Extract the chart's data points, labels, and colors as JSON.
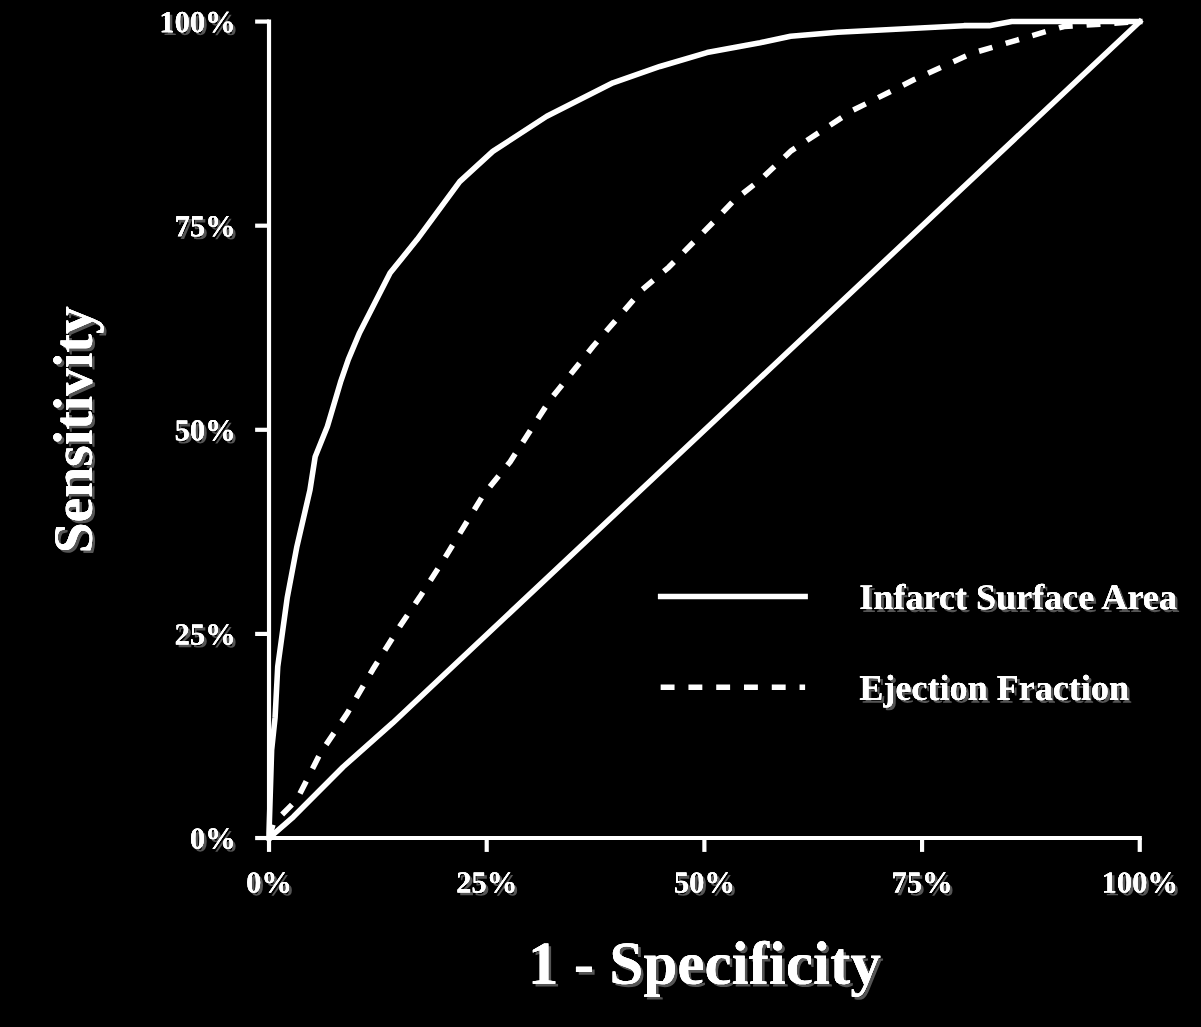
{
  "chart_data": {
    "type": "line",
    "xlabel": "1 - Specificity",
    "ylabel": "Sensitivity",
    "xlim": [
      0,
      100
    ],
    "ylim": [
      0,
      100
    ],
    "xticks": [
      {
        "value": 0,
        "label": "0%"
      },
      {
        "value": 25,
        "label": "25%"
      },
      {
        "value": 50,
        "label": "50%"
      },
      {
        "value": 75,
        "label": "75%"
      },
      {
        "value": 100,
        "label": "100%"
      }
    ],
    "yticks": [
      {
        "value": 0,
        "label": "0%"
      },
      {
        "value": 25,
        "label": "25%"
      },
      {
        "value": 50,
        "label": "50%"
      },
      {
        "value": 75,
        "label": "75%"
      },
      {
        "value": 100,
        "label": "100%"
      }
    ],
    "grid": false,
    "legend": "bottom right",
    "marker": "none",
    "series": [
      {
        "name": "Infarct Surface Area",
        "color": "#ffffff",
        "line_style": "solid",
        "x": [
          0,
          0,
          0.3,
          0.7,
          1.0,
          2.1,
          3.2,
          4.7,
          5.3,
          6.7,
          8.2,
          9.1,
          10.4,
          13.9,
          17.0,
          21.9,
          25.7,
          31.9,
          39.5,
          44.9,
          50.3,
          56.4,
          59.9,
          65.3,
          79.8,
          82.7,
          85.3,
          100
        ],
        "values": [
          0,
          0.6,
          10.8,
          14.8,
          21,
          29.5,
          35.7,
          42.6,
          46.7,
          50.4,
          55.8,
          58.6,
          61.9,
          69.2,
          73.3,
          80.4,
          84.1,
          88.4,
          92.5,
          94.5,
          96.2,
          97.4,
          98.2,
          98.7,
          99.5,
          99.5,
          100,
          100
        ]
      },
      {
        "name": "Ejection Fraction",
        "color": "#ffffff",
        "line_style": "dashed",
        "x": [
          0,
          0.5,
          3.2,
          5.9,
          9.0,
          11.9,
          15.0,
          17.3,
          19.9,
          24.6,
          27.7,
          32.3,
          37.2,
          42.9,
          45.9,
          51.0,
          53.4,
          56.4,
          60.0,
          67.0,
          74.1,
          80.7,
          89.0,
          91.3,
          100
        ],
        "values": [
          0,
          1.8,
          4.7,
          10.4,
          15.3,
          20.6,
          25.9,
          29.5,
          33.8,
          42.0,
          46.1,
          53.7,
          60.2,
          67.2,
          69.9,
          75.4,
          78.1,
          80.6,
          84.2,
          89.1,
          92.9,
          96.1,
          98.7,
          99.4,
          100
        ]
      },
      {
        "color": "#ffffff",
        "line_style": "solid",
        "x": [
          0,
          2.8,
          8.5,
          14.2,
          100
        ],
        "values": [
          0,
          2.6,
          8.7,
          14.1,
          100
        ]
      }
    ]
  }
}
